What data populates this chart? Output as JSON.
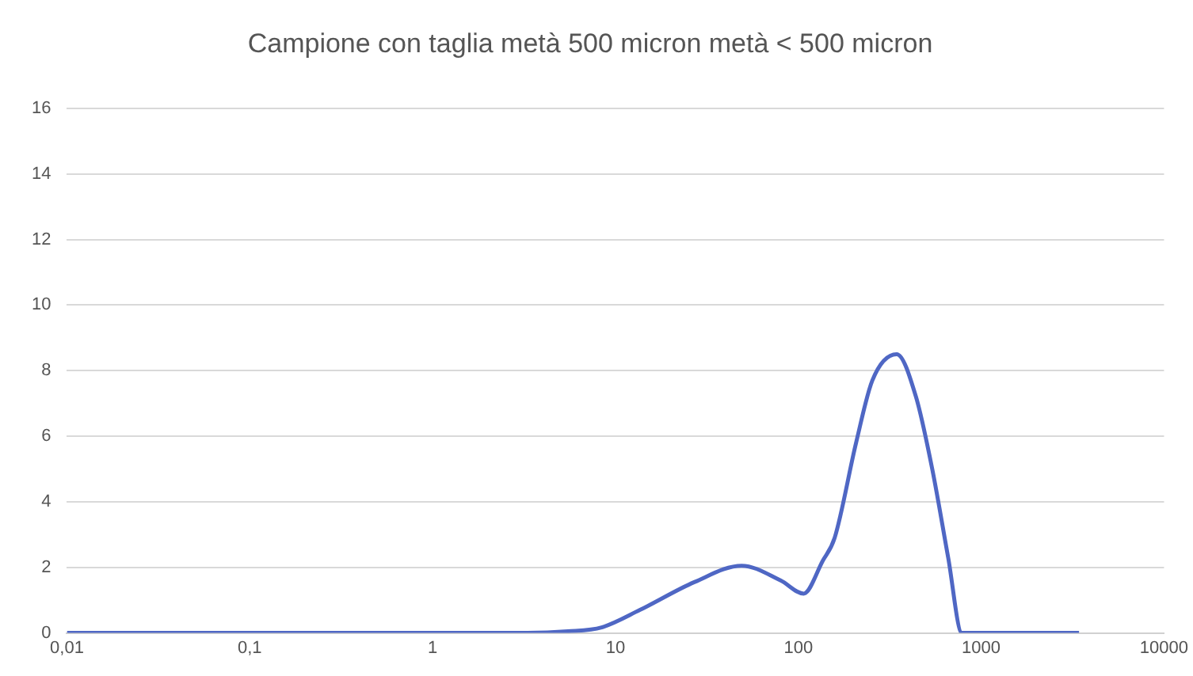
{
  "chart_data": {
    "type": "line",
    "title": "Campione con taglia metà 500 micron metà < 500 micron",
    "x": [
      0.01,
      3.3,
      5.5,
      8.4,
      13.6,
      27,
      49,
      80,
      107,
      136,
      158,
      207,
      254,
      345,
      440,
      540,
      660,
      785,
      3430
    ],
    "series": [
      {
        "color": "#4f67c4",
        "values": [
          0,
          0,
          0.05,
          0.17,
          0.7,
          1.55,
          2.05,
          1.6,
          1.2,
          2.2,
          2.9,
          5.8,
          7.7,
          8.5,
          7.2,
          5.0,
          2.3,
          0,
          0
        ]
      }
    ],
    "log": "x",
    "xlim": [
      0.01,
      10000
    ],
    "xticks": [
      {
        "value": 0.01,
        "label": "0,01"
      },
      {
        "value": 0.1,
        "label": "0,1"
      },
      1,
      10,
      100,
      1000,
      10000
    ],
    "ylim": [
      0,
      16
    ],
    "yticks": [
      0,
      2,
      4,
      6,
      8,
      10,
      12,
      14,
      16
    ],
    "grid": "y",
    "legend": false,
    "marker": "none",
    "line_style": "solid"
  }
}
